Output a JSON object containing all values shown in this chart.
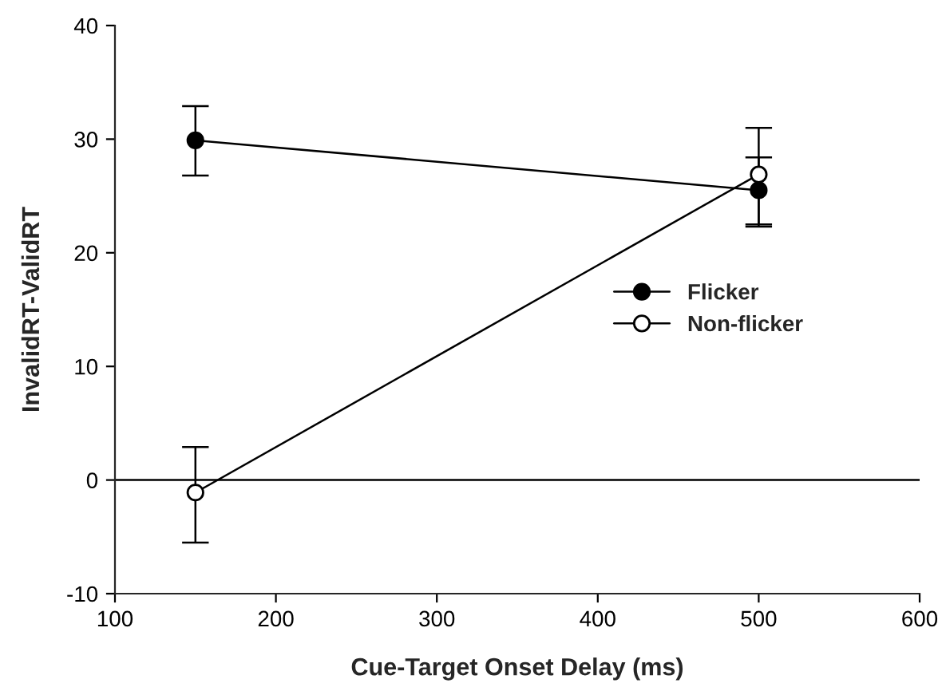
{
  "chart_data": {
    "type": "line",
    "xlabel": "Cue-Target Onset Delay (ms)",
    "ylabel": "InvalidRT-ValidRT",
    "xlim": [
      100,
      600
    ],
    "xticks": [
      100,
      200,
      300,
      400,
      500,
      600
    ],
    "ylim": [
      -10,
      40
    ],
    "yticks": [
      -10,
      0,
      10,
      20,
      30,
      40
    ],
    "x": [
      150,
      500
    ],
    "marker": "circle",
    "series": [
      {
        "name": "Flicker",
        "color": "#000000",
        "values": [
          29.9,
          25.5
        ],
        "errors": [
          [
            26.8,
            32.9
          ],
          [
            22.3,
            28.4
          ]
        ]
      },
      {
        "name": "Non-flicker",
        "color": "#ffffff",
        "values": [
          -1.1,
          26.9
        ],
        "errors": [
          [
            -5.5,
            2.9
          ],
          [
            22.5,
            31.0
          ]
        ]
      }
    ],
    "ref_lines": [
      {
        "axis": "y",
        "value": 0,
        "color": "#000000"
      }
    ],
    "legend": "right",
    "grid": false
  }
}
